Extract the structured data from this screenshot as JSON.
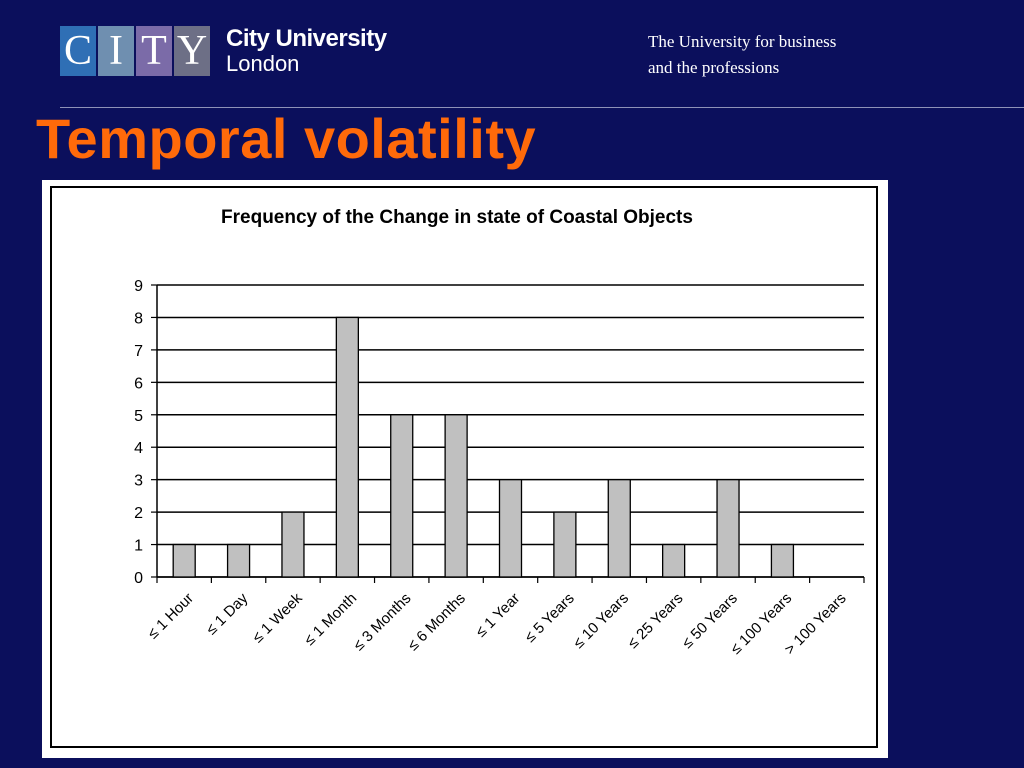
{
  "header": {
    "logo_letters": [
      "C",
      "I",
      "T",
      "Y"
    ],
    "logo_colors": [
      "#2f6fb5",
      "#6f8fb0",
      "#7b6ba8",
      "#6d6f86"
    ],
    "logo_name": "City University",
    "logo_city": "London",
    "tagline_line1": "The University for business",
    "tagline_line2": "and the professions"
  },
  "slide": {
    "title": "Temporal volatility"
  },
  "chart_data": {
    "type": "bar",
    "title": "Frequency of the Change in state of Coastal Objects",
    "categories": [
      "≤ 1 Hour",
      "≤ 1 Day",
      "≤ 1 Week",
      "≤ 1 Month",
      "≤ 3 Months",
      "≤ 6 Months",
      "≤ 1 Year",
      "≤ 5 Years",
      "≤ 10 Years",
      "≤ 25 Years",
      "≤ 50 Years",
      "≤ 100 Years",
      "> 100 Years"
    ],
    "values": [
      1,
      1,
      2,
      8,
      5,
      5,
      3,
      2,
      3,
      1,
      3,
      1,
      0
    ],
    "ylim": [
      0,
      9
    ],
    "yticks": [
      "0",
      "1",
      "2",
      "3",
      "4",
      "5",
      "6",
      "7",
      "8",
      "9"
    ],
    "xlabel": "",
    "ylabel": "",
    "grid": true,
    "bar_color": "#c0c0c0"
  }
}
